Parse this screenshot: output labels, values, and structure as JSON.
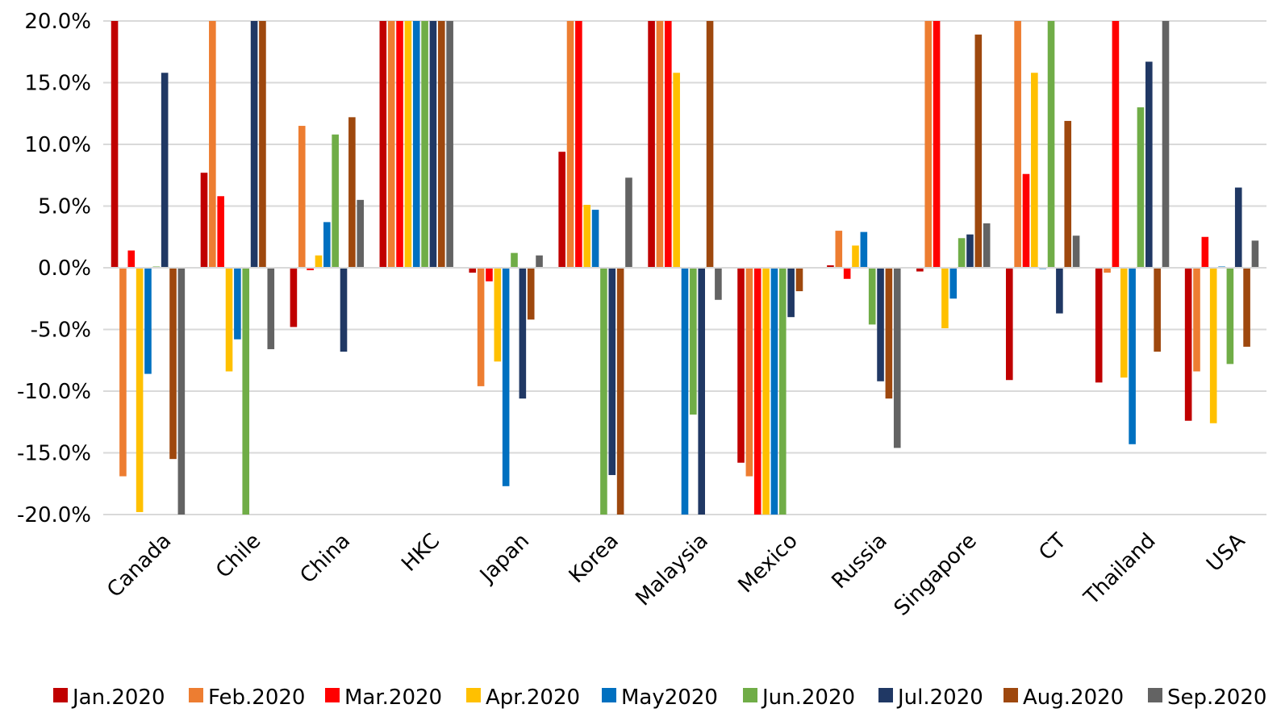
{
  "chart_data": {
    "type": "bar",
    "title": "",
    "xlabel": "",
    "ylabel": "",
    "ylim": [
      -20,
      20
    ],
    "y_ticks": [
      20,
      15,
      10,
      5,
      0,
      -5,
      -10,
      -15,
      -20
    ],
    "y_tick_labels": [
      "20.0%",
      "15.0%",
      "10.0%",
      "5.0%",
      "0.0%",
      "-5.0%",
      "-10.0%",
      "-15.0%",
      "-20.0%"
    ],
    "grid": true,
    "legend_position": "bottom",
    "categories": [
      "Canada",
      "Chile",
      "China",
      "HKC",
      "Japan",
      "Korea",
      "Malaysia",
      "Mexico",
      "Russia",
      "Singapore",
      "CT",
      "Thailand",
      "USA"
    ],
    "series": [
      {
        "name": "Jan.2020",
        "color": "#C00000",
        "values": [
          20,
          7.7,
          -4.8,
          20,
          -0.4,
          9.4,
          20,
          -15.8,
          0.2,
          -0.3,
          -9.1,
          -9.3,
          -12.4
        ]
      },
      {
        "name": "Feb.2020",
        "color": "#ED7D31",
        "values": [
          -16.9,
          20,
          11.5,
          20,
          -9.6,
          20,
          20,
          -16.9,
          3.0,
          20,
          20,
          -0.4,
          -8.4
        ]
      },
      {
        "name": "Mar.2020",
        "color": "#FF0000",
        "values": [
          1.4,
          5.8,
          -0.2,
          20,
          -1.1,
          20,
          20,
          -20,
          -0.9,
          20,
          7.6,
          20,
          2.5
        ]
      },
      {
        "name": "Apr.2020",
        "color": "#FFC000",
        "values": [
          -19.8,
          -8.4,
          1.0,
          20,
          -7.6,
          5.1,
          15.8,
          -20,
          1.8,
          -4.9,
          15.8,
          -8.9,
          -12.6
        ]
      },
      {
        "name": "May2020",
        "color": "#0070C0",
        "values": [
          -8.6,
          -5.8,
          3.7,
          20,
          -17.7,
          4.7,
          -20,
          -20,
          2.9,
          -2.5,
          -0.1,
          -14.3,
          0.1
        ]
      },
      {
        "name": "Jun.2020",
        "color": "#70AD47",
        "values": [
          0.1,
          -20,
          10.8,
          20,
          1.2,
          -20,
          -11.9,
          -20,
          -4.6,
          2.4,
          20,
          13.0,
          -7.8
        ]
      },
      {
        "name": "Jul.2020",
        "color": "#203864",
        "values": [
          15.8,
          20,
          -6.8,
          20,
          -10.6,
          -16.8,
          -20,
          -4.0,
          -9.2,
          2.7,
          -3.7,
          16.7,
          6.5
        ]
      },
      {
        "name": "Aug.2020",
        "color": "#9E480E",
        "values": [
          -15.5,
          20,
          12.2,
          20,
          -4.2,
          -20,
          20,
          -1.9,
          -10.6,
          18.9,
          11.9,
          -6.8,
          -6.4
        ]
      },
      {
        "name": "Sep.2020",
        "color": "#636363",
        "values": [
          -20,
          -6.6,
          5.5,
          20,
          1.0,
          7.3,
          -2.6,
          0,
          -14.6,
          3.6,
          2.6,
          20,
          2.2
        ]
      }
    ]
  }
}
